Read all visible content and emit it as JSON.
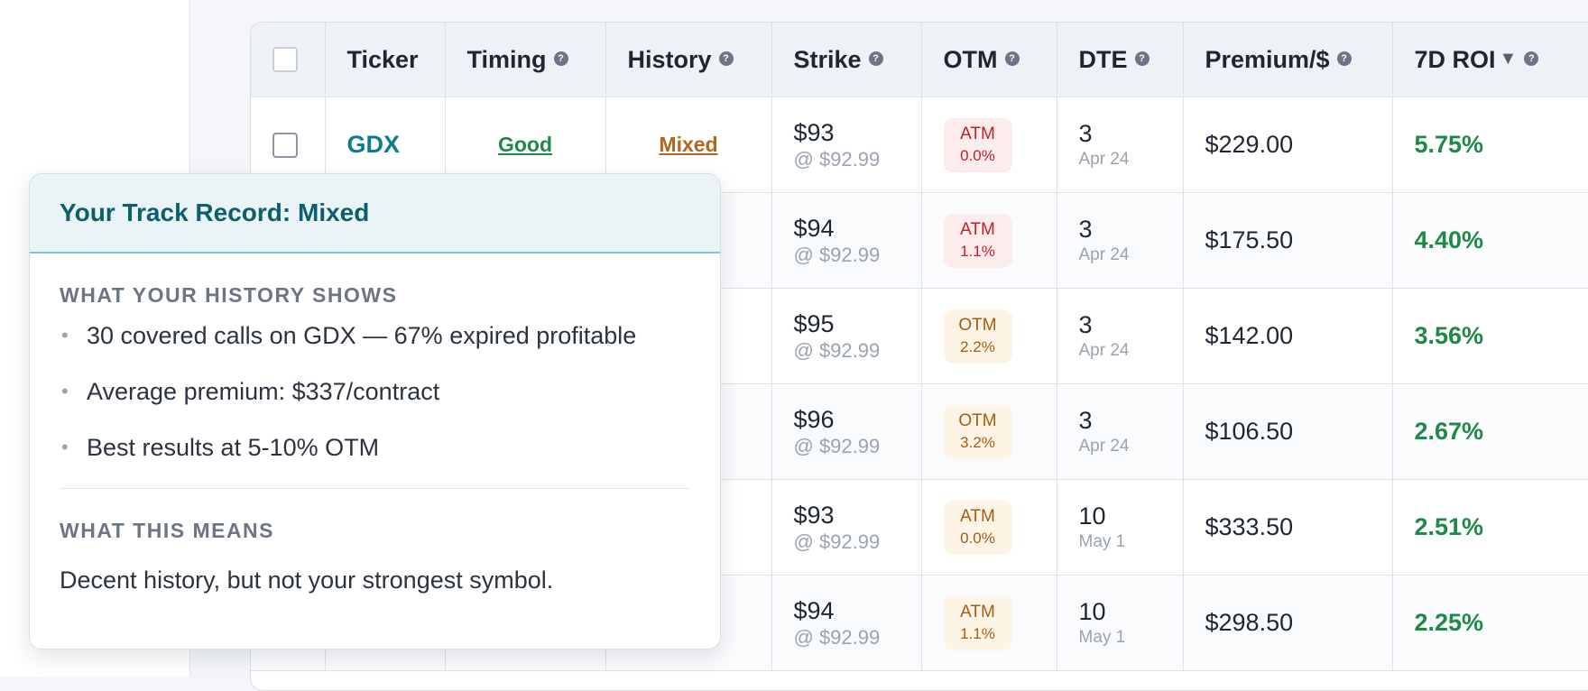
{
  "table": {
    "headers": {
      "ticker": "Ticker",
      "timing": "Timing",
      "history": "History",
      "strike": "Strike",
      "otm": "OTM",
      "dte": "DTE",
      "premium": "Premium/$",
      "roi": "7D ROI"
    },
    "rows": [
      {
        "ticker": "GDX",
        "timing": "Good",
        "history": "Mixed",
        "strike": "$93",
        "price": "@ $92.99",
        "otm_type": "ATM",
        "otm_pct": "0.0%",
        "dte": "3",
        "date": "Apr 24",
        "premium": "$229.00",
        "roi": "5.75%"
      },
      {
        "ticker": "",
        "timing": "",
        "history": "",
        "strike": "$94",
        "price": "@ $92.99",
        "otm_type": "ATM",
        "otm_pct": "1.1%",
        "dte": "3",
        "date": "Apr 24",
        "premium": "$175.50",
        "roi": "4.40%"
      },
      {
        "ticker": "",
        "timing": "",
        "history": "",
        "strike": "$95",
        "price": "@ $92.99",
        "otm_type": "OTM",
        "otm_pct": "2.2%",
        "dte": "3",
        "date": "Apr 24",
        "premium": "$142.00",
        "roi": "3.56%"
      },
      {
        "ticker": "",
        "timing": "",
        "history": "",
        "strike": "$96",
        "price": "@ $92.99",
        "otm_type": "OTM",
        "otm_pct": "3.2%",
        "dte": "3",
        "date": "Apr 24",
        "premium": "$106.50",
        "roi": "2.67%"
      },
      {
        "ticker": "",
        "timing": "",
        "history": "",
        "strike": "$93",
        "price": "@ $92.99",
        "otm_type": "ATM",
        "otm_pct": "0.0%",
        "dte": "10",
        "date": "May 1",
        "premium": "$333.50",
        "roi": "2.51%"
      },
      {
        "ticker": "",
        "timing": "",
        "history": "",
        "strike": "$94",
        "price": "@ $92.99",
        "otm_type": "ATM",
        "otm_pct": "1.1%",
        "dte": "10",
        "date": "May 1",
        "premium": "$298.50",
        "roi": "2.25%"
      }
    ]
  },
  "popover": {
    "title": "Your Track Record: Mixed",
    "history_label": "WHAT YOUR HISTORY SHOWS",
    "bullets": [
      "30 covered calls on GDX — 67% expired profitable",
      "Average premium: $337/contract",
      "Best results at 5-10% OTM"
    ],
    "meaning_label": "WHAT THIS MEANS",
    "meaning": "Decent history, but not your strongest symbol."
  },
  "colors": {
    "accent_teal": "#0f7a8c",
    "good_green": "#1f8a47",
    "mixed_orange": "#b5651d",
    "atm_red": "#c0202a"
  },
  "icons": {
    "help": "help-circle-icon",
    "sort": "sort-desc-icon",
    "bullet": "bullet-icon"
  }
}
